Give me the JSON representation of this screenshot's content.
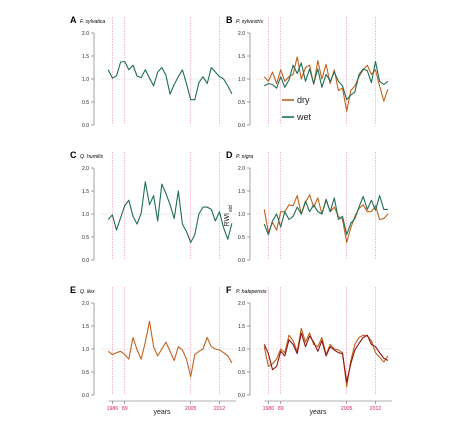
{
  "colors": {
    "dry": "#c0621e",
    "wet": "#1f6e55",
    "dry_dark": "#8e1414",
    "event_line": "#f08ca0",
    "reference_line": "#bdbdbd",
    "axis": "#666666"
  },
  "axes": {
    "y_title_main": "RWI",
    "y_title_sub": "std",
    "x_title": "years",
    "y_ticks": [
      "0.0",
      "0.5",
      "1.0",
      "1.5",
      "2.0"
    ]
  },
  "legend": {
    "dry": "dry",
    "wet": "wet"
  },
  "chart_data": [
    {
      "type": "line",
      "panel": "A",
      "title": "F. sylvatica",
      "ylim": [
        0,
        2
      ],
      "xlim": [
        1983,
        2016
      ],
      "xticks": [],
      "event_years": [
        1986,
        1989,
        2005,
        2012
      ],
      "reference_y": 1.0,
      "series": [
        {
          "name": "wet",
          "color_key": "wet",
          "x": [
            1985,
            1986,
            1987,
            1988,
            1989,
            1990,
            1991,
            1992,
            1993,
            1994,
            1995,
            1996,
            1997,
            1998,
            1999,
            2000,
            2001,
            2002,
            2003,
            2004,
            2005,
            2006,
            2007,
            2008,
            2009,
            2010,
            2011,
            2012,
            2013,
            2014,
            2015
          ],
          "y": [
            1.2,
            1.02,
            1.07,
            1.37,
            1.38,
            1.2,
            1.3,
            1.06,
            1.03,
            1.2,
            1.02,
            0.85,
            1.15,
            1.25,
            1.08,
            0.67,
            0.88,
            1.05,
            1.2,
            0.9,
            0.55,
            0.55,
            0.92,
            1.05,
            0.9,
            1.25,
            1.15,
            1.05,
            1.0,
            0.85,
            0.68
          ]
        }
      ]
    },
    {
      "type": "line",
      "panel": "B",
      "title": "P. sylvestris",
      "ylim": [
        0,
        2
      ],
      "xlim": [
        1983,
        2016
      ],
      "xticks": [],
      "event_years": [
        1986,
        1989,
        2005,
        2012
      ],
      "reference_y": 1.0,
      "series": [
        {
          "name": "dry",
          "color_key": "dry",
          "x": [
            1985,
            1986,
            1987,
            1988,
            1989,
            1990,
            1991,
            1992,
            1993,
            1994,
            1995,
            1996,
            1997,
            1998,
            1999,
            2000,
            2001,
            2002,
            2003,
            2004,
            2005,
            2006,
            2007,
            2008,
            2009,
            2010,
            2011,
            2012,
            2013,
            2014,
            2015
          ],
          "y": [
            1.05,
            0.95,
            1.15,
            0.9,
            1.2,
            0.95,
            1.05,
            1.1,
            1.48,
            1.0,
            1.25,
            1.3,
            0.88,
            1.4,
            1.0,
            1.32,
            0.9,
            1.2,
            0.75,
            0.8,
            0.3,
            0.75,
            0.85,
            1.05,
            1.2,
            1.3,
            1.1,
            1.2,
            0.85,
            0.52,
            0.78
          ]
        },
        {
          "name": "wet",
          "color_key": "wet",
          "x": [
            1985,
            1986,
            1987,
            1988,
            1989,
            1990,
            1991,
            1992,
            1993,
            1994,
            1995,
            1996,
            1997,
            1998,
            1999,
            2000,
            2001,
            2002,
            2003,
            2004,
            2005,
            2006,
            2007,
            2008,
            2009,
            2010,
            2011,
            2012,
            2013,
            2014,
            2015
          ],
          "y": [
            0.85,
            0.9,
            0.88,
            0.8,
            1.05,
            0.82,
            0.98,
            1.3,
            1.12,
            1.35,
            0.95,
            1.22,
            0.9,
            1.22,
            0.82,
            1.1,
            0.95,
            1.15,
            0.95,
            0.85,
            0.55,
            0.65,
            0.72,
            1.1,
            1.22,
            1.18,
            0.92,
            1.38,
            0.95,
            0.88,
            0.95
          ]
        }
      ]
    },
    {
      "type": "line",
      "panel": "C",
      "title": "Q. humilis",
      "ylim": [
        0,
        2
      ],
      "xlim": [
        1983,
        2016
      ],
      "xticks": [],
      "event_years": [
        1986,
        1989,
        2005,
        2012
      ],
      "reference_y": 1.0,
      "series": [
        {
          "name": "wet",
          "color_key": "wet",
          "x": [
            1985,
            1986,
            1987,
            1988,
            1989,
            1990,
            1991,
            1992,
            1993,
            1994,
            1995,
            1996,
            1997,
            1998,
            1999,
            2000,
            2001,
            2002,
            2003,
            2004,
            2005,
            2006,
            2007,
            2008,
            2009,
            2010,
            2011,
            2012,
            2013,
            2014,
            2015
          ],
          "y": [
            0.88,
            0.98,
            0.65,
            0.92,
            1.18,
            1.3,
            0.95,
            0.78,
            1.02,
            1.7,
            1.2,
            1.4,
            0.85,
            1.65,
            1.45,
            1.2,
            0.9,
            1.5,
            0.78,
            0.62,
            0.38,
            0.55,
            1.0,
            1.15,
            1.15,
            1.1,
            0.85,
            1.05,
            0.7,
            0.45,
            0.8
          ]
        }
      ]
    },
    {
      "type": "line",
      "panel": "D",
      "title": "P. nigra",
      "ylim": [
        0,
        2
      ],
      "xlim": [
        1983,
        2016
      ],
      "xticks": [],
      "event_years": [
        1986,
        1989,
        2005,
        2012
      ],
      "reference_y": 1.0,
      "series": [
        {
          "name": "dry",
          "color_key": "dry",
          "x": [
            1985,
            1986,
            1987,
            1988,
            1989,
            1990,
            1991,
            1992,
            1993,
            1994,
            1995,
            1996,
            1997,
            1998,
            1999,
            2000,
            2001,
            2002,
            2003,
            2004,
            2005,
            2006,
            2007,
            2008,
            2009,
            2010,
            2011,
            2012,
            2013,
            2014,
            2015
          ],
          "y": [
            1.1,
            0.6,
            0.82,
            0.65,
            1.05,
            1.05,
            1.2,
            1.18,
            1.4,
            1.0,
            1.25,
            1.42,
            1.15,
            1.35,
            1.0,
            1.3,
            1.05,
            1.15,
            0.95,
            0.88,
            0.38,
            0.7,
            0.95,
            1.12,
            1.2,
            1.05,
            1.05,
            1.18,
            0.88,
            0.9,
            1.0
          ]
        },
        {
          "name": "wet",
          "color_key": "wet",
          "x": [
            1985,
            1986,
            1987,
            1988,
            1989,
            1990,
            1991,
            1992,
            1993,
            1994,
            1995,
            1996,
            1997,
            1998,
            1999,
            2000,
            2001,
            2002,
            2003,
            2004,
            2005,
            2006,
            2007,
            2008,
            2009,
            2010,
            2011,
            2012,
            2013,
            2014,
            2015
          ],
          "y": [
            0.78,
            0.55,
            0.85,
            1.0,
            0.72,
            1.05,
            0.88,
            0.95,
            1.15,
            1.0,
            1.28,
            1.05,
            1.2,
            1.05,
            1.0,
            1.32,
            1.05,
            1.35,
            0.88,
            0.95,
            0.55,
            0.8,
            0.9,
            1.15,
            1.38,
            1.1,
            1.3,
            1.08,
            1.4,
            1.1,
            1.1
          ]
        }
      ]
    },
    {
      "type": "line",
      "panel": "E",
      "title": "Q. ilex",
      "ylim": [
        0,
        2
      ],
      "xlim": [
        1983,
        2016
      ],
      "xticks": [
        1986,
        1989,
        2005,
        2012
      ],
      "event_years": [
        1986,
        1989,
        2005,
        2012
      ],
      "reference_y": 1.0,
      "series": [
        {
          "name": "dry",
          "color_key": "dry",
          "x": [
            1985,
            1986,
            1987,
            1988,
            1989,
            1990,
            1991,
            1992,
            1993,
            1994,
            1995,
            1996,
            1997,
            1998,
            1999,
            2000,
            2001,
            2002,
            2003,
            2004,
            2005,
            2006,
            2007,
            2008,
            2009,
            2010,
            2011,
            2012,
            2013,
            2014,
            2015
          ],
          "y": [
            0.95,
            0.88,
            0.92,
            0.95,
            0.88,
            0.78,
            1.25,
            0.98,
            0.78,
            1.15,
            1.6,
            1.05,
            0.85,
            1.0,
            1.15,
            0.95,
            0.75,
            1.05,
            0.98,
            0.78,
            0.4,
            0.88,
            0.95,
            1.0,
            1.25,
            1.05,
            1.0,
            0.98,
            0.92,
            0.85,
            0.7
          ]
        }
      ]
    },
    {
      "type": "line",
      "panel": "F",
      "title": "P. halepensis",
      "ylim": [
        0,
        2
      ],
      "xlim": [
        1983,
        2016
      ],
      "xticks": [
        1986,
        1989,
        2005,
        2012
      ],
      "event_years": [
        1986,
        1989,
        2005,
        2012
      ],
      "reference_y": 1.0,
      "series": [
        {
          "name": "dry",
          "color_key": "dry",
          "x": [
            1985,
            1986,
            1987,
            1988,
            1989,
            1990,
            1991,
            1992,
            1993,
            1994,
            1995,
            1996,
            1997,
            1998,
            1999,
            2000,
            2001,
            2002,
            2003,
            2004,
            2005,
            2006,
            2007,
            2008,
            2009,
            2010,
            2011,
            2012,
            2013,
            2014,
            2015
          ],
          "y": [
            1.05,
            0.62,
            0.68,
            0.78,
            1.0,
            0.92,
            1.3,
            1.18,
            0.95,
            1.45,
            1.15,
            1.35,
            1.1,
            1.05,
            1.25,
            0.88,
            1.1,
            1.0,
            0.98,
            0.92,
            0.18,
            0.75,
            1.1,
            1.25,
            1.3,
            1.28,
            1.18,
            0.92,
            0.82,
            0.72,
            0.85
          ]
        },
        {
          "name": "dry-dark",
          "color_key": "dry_dark",
          "x": [
            1985,
            1986,
            1987,
            1988,
            1989,
            1990,
            1991,
            1992,
            1993,
            1994,
            1995,
            1996,
            1997,
            1998,
            1999,
            2000,
            2001,
            2002,
            2003,
            2004,
            2005,
            2006,
            2007,
            2008,
            2009,
            2010,
            2011,
            2012,
            2013,
            2014,
            2015
          ],
          "y": [
            1.1,
            0.9,
            0.55,
            0.62,
            0.95,
            0.85,
            1.2,
            1.1,
            0.9,
            1.35,
            1.05,
            1.28,
            1.15,
            0.95,
            1.18,
            0.85,
            1.05,
            0.98,
            0.92,
            0.9,
            0.28,
            0.68,
            0.98,
            1.12,
            1.25,
            1.3,
            1.1,
            1.05,
            0.92,
            0.8,
            0.75
          ]
        }
      ]
    }
  ]
}
